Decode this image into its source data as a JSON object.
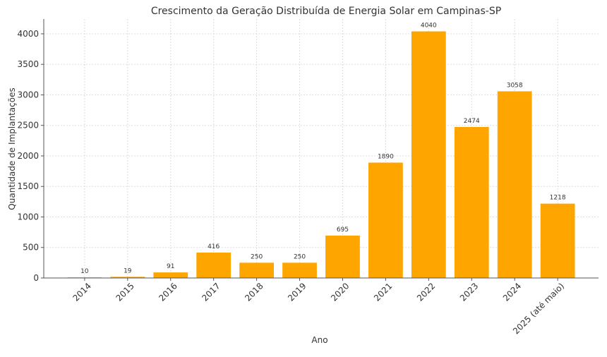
{
  "chart_data": {
    "type": "bar",
    "title": "Crescimento da Geração Distribuída de Energia Solar em Campinas-SP",
    "xlabel": "Ano",
    "ylabel": "Quantidade de Implantações",
    "categories": [
      "2014",
      "2015",
      "2016",
      "2017",
      "2018",
      "2019",
      "2020",
      "2021",
      "2022",
      "2023",
      "2024",
      "2025 (até maio)"
    ],
    "values": [
      10,
      19,
      91,
      416,
      250,
      250,
      695,
      1890,
      4040,
      2474,
      3058,
      1218
    ],
    "ylim": [
      0,
      4242
    ],
    "yticks": [
      0,
      500,
      1000,
      1500,
      2000,
      2500,
      3000,
      3500,
      4000
    ],
    "grid": true,
    "bar_color": "#FFA500"
  }
}
